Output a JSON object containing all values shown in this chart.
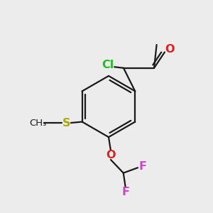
{
  "bg_color": "#ececec",
  "bond_color": "#1a1a1a",
  "bond_width": 1.6,
  "atom_colors": {
    "Cl": "#22bb22",
    "O": "#dd2222",
    "S": "#aaaa00",
    "F": "#cc44cc",
    "C": "#1a1a1a"
  },
  "font_size": 10.5
}
